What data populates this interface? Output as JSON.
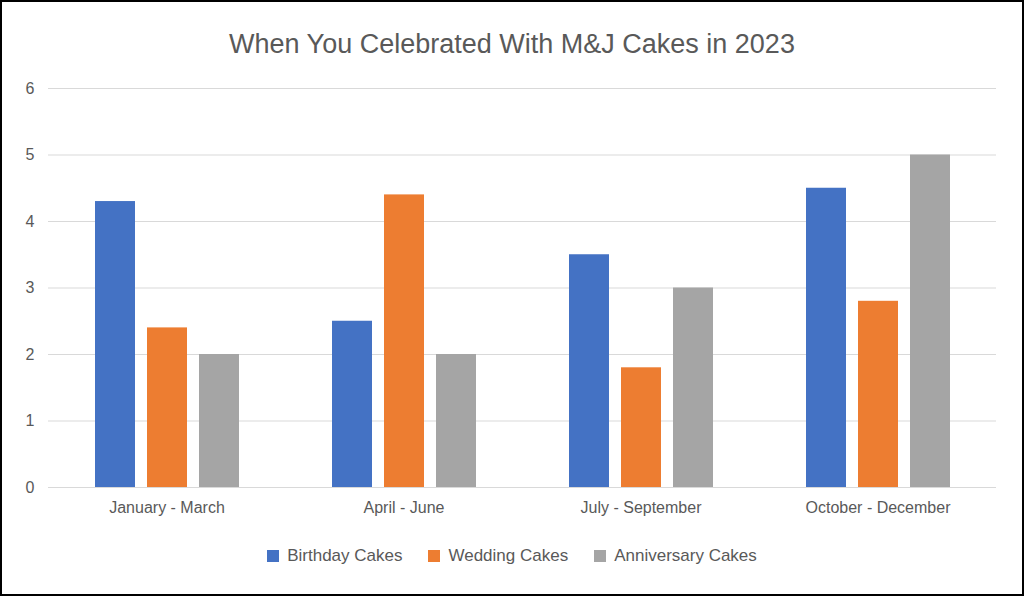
{
  "chart_data": {
    "type": "bar",
    "title": "When You Celebrated With M&J Cakes in 2023",
    "categories": [
      "January - March",
      "April - June",
      "July - September",
      "October - December"
    ],
    "series": [
      {
        "name": "Birthday Cakes",
        "color": "#4472c4",
        "values": [
          4.3,
          2.5,
          3.5,
          4.5
        ]
      },
      {
        "name": "Wedding Cakes",
        "color": "#ed7d31",
        "values": [
          2.4,
          4.4,
          1.8,
          2.8
        ]
      },
      {
        "name": "Anniversary Cakes",
        "color": "#a5a5a5",
        "values": [
          2,
          2,
          3,
          5
        ]
      }
    ],
    "ylim": [
      0,
      6
    ],
    "yticks": [
      0,
      1,
      2,
      3,
      4,
      5,
      6
    ],
    "grid": true,
    "legend": "bottom"
  }
}
